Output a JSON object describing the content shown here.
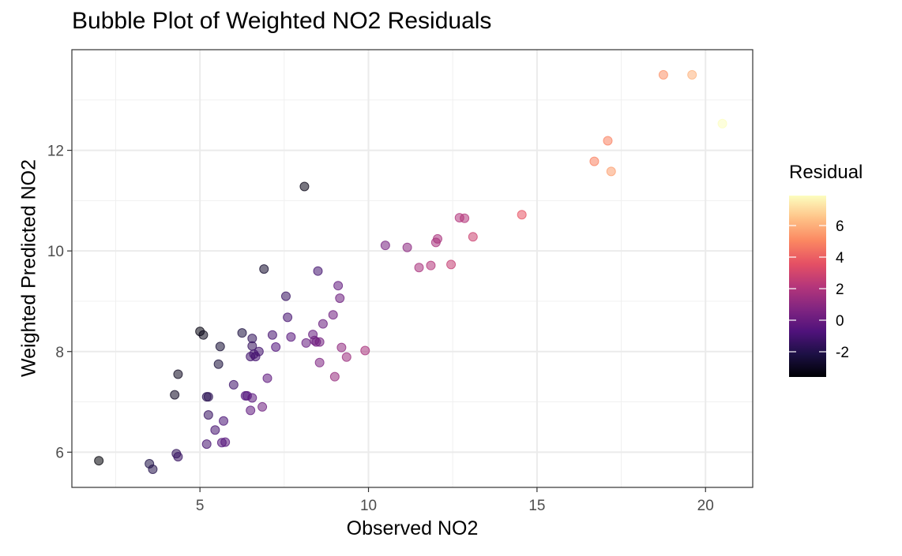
{
  "chart_data": {
    "type": "scatter",
    "title": "Bubble Plot of Weighted NO2 Residuals",
    "xlabel": "Observed NO2",
    "ylabel": "Weighted Predicted NO2",
    "xlim": [
      1.2,
      21.4
    ],
    "ylim": [
      5.3,
      14.0
    ],
    "xticks": [
      5,
      10,
      15,
      20
    ],
    "yticks": [
      6,
      8,
      10,
      12
    ],
    "grid": true,
    "legend": {
      "title": "Residual",
      "position": "right",
      "range": [
        -3.6,
        7.9
      ],
      "ticks": [
        -2,
        0,
        2,
        4,
        6
      ],
      "colormap": "magma"
    },
    "points": [
      {
        "x": 2.0,
        "y": 5.83,
        "r": -3.5
      },
      {
        "x": 3.5,
        "y": 5.77,
        "r": -2.1
      },
      {
        "x": 3.6,
        "y": 5.66,
        "r": -2.0
      },
      {
        "x": 4.3,
        "y": 5.97,
        "r": -1.6
      },
      {
        "x": 4.35,
        "y": 5.91,
        "r": -1.4
      },
      {
        "x": 4.35,
        "y": 7.55,
        "r": -3.0
      },
      {
        "x": 4.25,
        "y": 7.14,
        "r": -2.9
      },
      {
        "x": 5.0,
        "y": 8.4,
        "r": -3.3
      },
      {
        "x": 5.1,
        "y": 8.33,
        "r": -3.1
      },
      {
        "x": 5.2,
        "y": 7.1,
        "r": -1.8
      },
      {
        "x": 5.25,
        "y": 7.1,
        "r": -1.8
      },
      {
        "x": 5.2,
        "y": 6.16,
        "r": -1.0
      },
      {
        "x": 5.25,
        "y": 6.74,
        "r": -1.4
      },
      {
        "x": 5.45,
        "y": 6.44,
        "r": -1.0
      },
      {
        "x": 5.55,
        "y": 7.75,
        "r": -2.4
      },
      {
        "x": 5.6,
        "y": 8.1,
        "r": -2.6
      },
      {
        "x": 5.65,
        "y": 6.19,
        "r": -0.6
      },
      {
        "x": 5.7,
        "y": 6.62,
        "r": -0.9
      },
      {
        "x": 5.75,
        "y": 6.2,
        "r": -0.5
      },
      {
        "x": 6.0,
        "y": 7.34,
        "r": -1.2
      },
      {
        "x": 6.25,
        "y": 8.37,
        "r": -2.3
      },
      {
        "x": 6.35,
        "y": 7.12,
        "r": -0.7
      },
      {
        "x": 6.4,
        "y": 7.12,
        "r": -0.7
      },
      {
        "x": 6.5,
        "y": 7.9,
        "r": -1.2
      },
      {
        "x": 6.55,
        "y": 8.26,
        "r": -1.6
      },
      {
        "x": 6.55,
        "y": 8.11,
        "r": -1.5
      },
      {
        "x": 6.5,
        "y": 6.83,
        "r": -0.3
      },
      {
        "x": 6.55,
        "y": 7.08,
        "r": -0.4
      },
      {
        "x": 6.6,
        "y": 7.95,
        "r": -1.1
      },
      {
        "x": 6.65,
        "y": 7.9,
        "r": -1.0
      },
      {
        "x": 6.75,
        "y": 8.0,
        "r": -1.1
      },
      {
        "x": 6.85,
        "y": 6.9,
        "r": 0.1
      },
      {
        "x": 6.9,
        "y": 9.64,
        "r": -2.7
      },
      {
        "x": 7.0,
        "y": 7.47,
        "r": -0.3
      },
      {
        "x": 7.15,
        "y": 8.33,
        "r": -1.0
      },
      {
        "x": 7.25,
        "y": 8.09,
        "r": -0.7
      },
      {
        "x": 7.55,
        "y": 9.1,
        "r": -1.4
      },
      {
        "x": 7.6,
        "y": 8.68,
        "r": -1.0
      },
      {
        "x": 7.7,
        "y": 8.29,
        "r": -0.5
      },
      {
        "x": 8.1,
        "y": 11.28,
        "r": -3.2
      },
      {
        "x": 8.15,
        "y": 8.17,
        "r": -0.1
      },
      {
        "x": 8.35,
        "y": 8.34,
        "r": -0.1
      },
      {
        "x": 8.4,
        "y": 8.22,
        "r": 0.1
      },
      {
        "x": 8.45,
        "y": 8.19,
        "r": 0.2
      },
      {
        "x": 8.5,
        "y": 9.6,
        "r": -1.1
      },
      {
        "x": 8.55,
        "y": 8.19,
        "r": 0.3
      },
      {
        "x": 8.55,
        "y": 7.78,
        "r": 0.6
      },
      {
        "x": 8.65,
        "y": 8.55,
        "r": 0.0
      },
      {
        "x": 8.95,
        "y": 8.73,
        "r": 0.2
      },
      {
        "x": 9.0,
        "y": 7.5,
        "r": 1.3
      },
      {
        "x": 9.1,
        "y": 9.31,
        "r": -0.2
      },
      {
        "x": 9.15,
        "y": 9.06,
        "r": 0.1
      },
      {
        "x": 9.2,
        "y": 8.08,
        "r": 1.1
      },
      {
        "x": 9.35,
        "y": 7.89,
        "r": 1.4
      },
      {
        "x": 9.9,
        "y": 8.02,
        "r": 1.8
      },
      {
        "x": 10.5,
        "y": 10.11,
        "r": 0.4
      },
      {
        "x": 11.15,
        "y": 10.07,
        "r": 1.0
      },
      {
        "x": 11.5,
        "y": 9.67,
        "r": 1.8
      },
      {
        "x": 11.85,
        "y": 9.71,
        "r": 2.1
      },
      {
        "x": 12.0,
        "y": 10.17,
        "r": 1.8
      },
      {
        "x": 12.05,
        "y": 10.24,
        "r": 1.8
      },
      {
        "x": 12.45,
        "y": 9.73,
        "r": 2.6
      },
      {
        "x": 12.7,
        "y": 10.66,
        "r": 2.0
      },
      {
        "x": 12.85,
        "y": 10.65,
        "r": 2.1
      },
      {
        "x": 13.1,
        "y": 10.28,
        "r": 2.8
      },
      {
        "x": 14.55,
        "y": 10.72,
        "r": 3.7
      },
      {
        "x": 16.7,
        "y": 11.78,
        "r": 4.9
      },
      {
        "x": 17.1,
        "y": 12.19,
        "r": 4.9
      },
      {
        "x": 17.2,
        "y": 11.58,
        "r": 5.6
      },
      {
        "x": 18.75,
        "y": 13.5,
        "r": 5.3
      },
      {
        "x": 19.6,
        "y": 13.5,
        "r": 6.1
      },
      {
        "x": 20.5,
        "y": 12.53,
        "r": 7.9
      }
    ]
  }
}
